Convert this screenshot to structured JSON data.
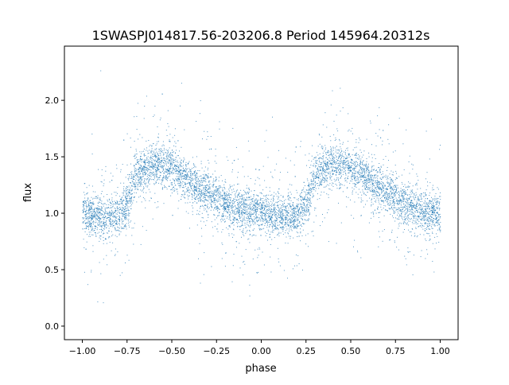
{
  "chart_data": {
    "type": "scatter",
    "title": "1SWASPJ014817.56-203206.8 Period 145964.20312s",
    "xlabel": "phase",
    "ylabel": "flux",
    "xlim": [
      -1.1,
      1.1
    ],
    "ylim": [
      -0.12,
      2.48
    ],
    "xticks": [
      -1.0,
      -0.75,
      -0.5,
      -0.25,
      0.0,
      0.25,
      0.5,
      0.75,
      1.0
    ],
    "xtick_labels": [
      "−1.00",
      "−0.75",
      "−0.50",
      "−0.25",
      "0.00",
      "0.25",
      "0.50",
      "0.75",
      "1.00"
    ],
    "yticks": [
      0.0,
      0.5,
      1.0,
      1.5,
      2.0
    ],
    "ytick_labels": [
      "0.0",
      "0.5",
      "1.0",
      "1.5",
      "2.0"
    ],
    "grid": false,
    "marker_color": "#1f77b4",
    "mean_curve": {
      "phase": [
        -1.0,
        -0.9,
        -0.8,
        -0.75,
        -0.7,
        -0.6,
        -0.5,
        -0.4,
        -0.3,
        -0.2,
        -0.1,
        0.0,
        0.1,
        0.2,
        0.25,
        0.3,
        0.4,
        0.5,
        0.6,
        0.7,
        0.8,
        0.9,
        1.0
      ],
      "flux": [
        1.0,
        0.98,
        0.97,
        1.1,
        1.35,
        1.45,
        1.4,
        1.28,
        1.18,
        1.08,
        1.03,
        1.0,
        0.97,
        0.97,
        1.1,
        1.35,
        1.45,
        1.4,
        1.28,
        1.18,
        1.08,
        1.03,
        1.0
      ]
    },
    "scatter_sd_core": 0.09,
    "scatter_sd_outlier": 0.3,
    "flux_range": [
      0.0,
      2.3
    ]
  }
}
